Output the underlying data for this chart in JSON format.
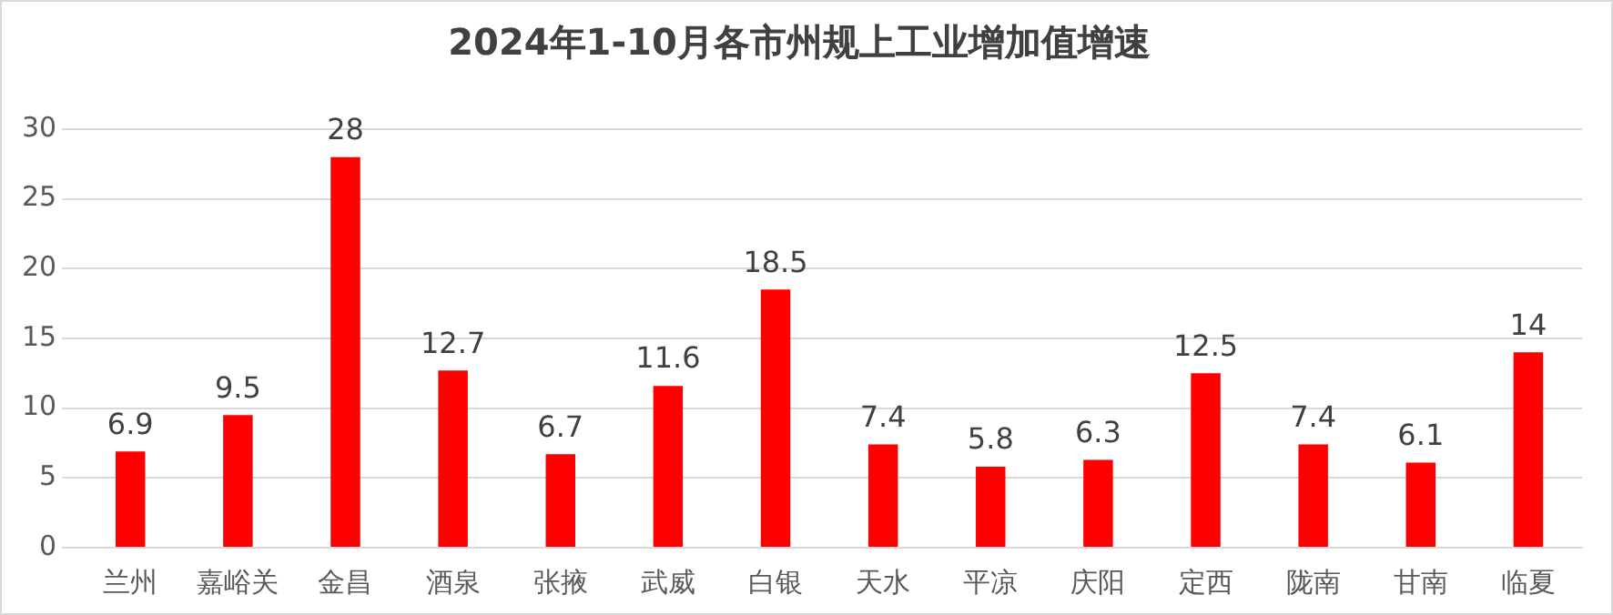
{
  "chart_data": {
    "type": "bar",
    "title": "2024年1-10月各市州规上工业增加值增速",
    "categories": [
      "兰州",
      "嘉峪关",
      "金昌",
      "酒泉",
      "张掖",
      "武威",
      "白银",
      "天水",
      "平凉",
      "庆阳",
      "定西",
      "陇南",
      "甘南",
      "临夏"
    ],
    "values": [
      6.9,
      9.5,
      28,
      12.7,
      6.7,
      11.6,
      18.5,
      7.4,
      5.8,
      6.3,
      12.5,
      7.4,
      6.1,
      14
    ],
    "color": "#ff0000",
    "ylim": [
      0,
      30
    ],
    "yticks": [
      0,
      5,
      10,
      15,
      20,
      25,
      30
    ],
    "grid": "y",
    "legend": false,
    "data_labels": true
  }
}
